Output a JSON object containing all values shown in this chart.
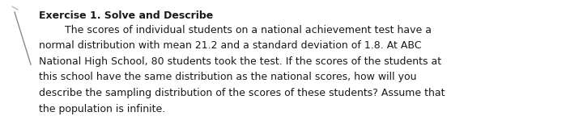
{
  "title": "Exercise 1. Solve and Describe",
  "line1": "        The scores of individual students on a national achievement test have a",
  "line2": "normal distribution with mean 21.2 and a standard deviation of 1.8. At ABC",
  "line3": "National High School, 80 students took the test. If the scores of the students at",
  "line4": "this school have the same distribution as the national scores, how will you",
  "line5": "describe the sampling distribution of the scores of these students? Assume that",
  "line6": "the population is infinite.",
  "bg_color": "#ffffff",
  "text_color": "#1a1a1a",
  "title_fontsize": 9.0,
  "body_fontsize": 9.0,
  "line_color": "#888888",
  "tick_color": "#aaaaaa"
}
